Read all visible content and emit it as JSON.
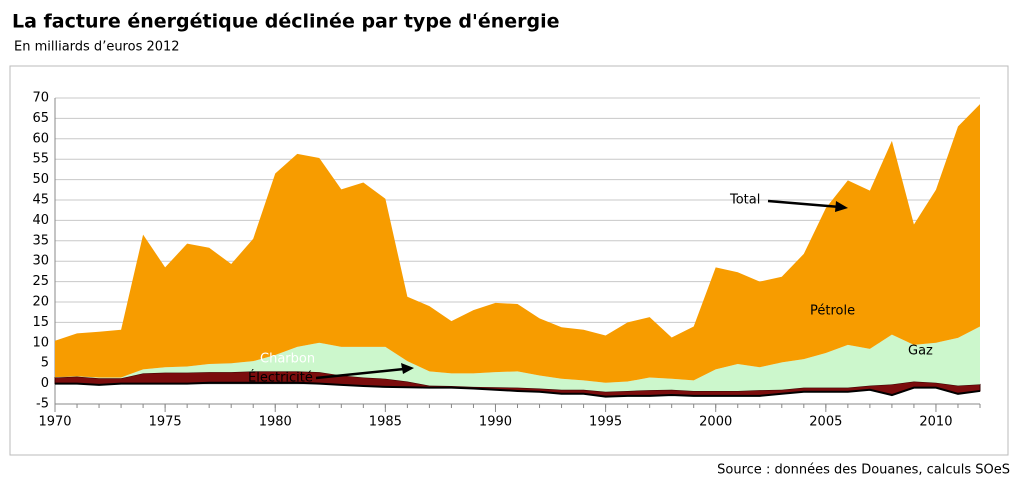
{
  "chart_data": {
    "type": "stacked-area",
    "title": "La facture énergétique déclinée par type d'énergie",
    "subtitle": "En milliards d’euros 2012",
    "source": "Source : données des Douanes, calculs SOeS",
    "annotations": [
      "Total"
    ],
    "x": [
      1970,
      1971,
      1972,
      1973,
      1974,
      1975,
      1976,
      1977,
      1978,
      1979,
      1980,
      1981,
      1982,
      1983,
      1984,
      1985,
      1986,
      1987,
      1988,
      1989,
      1990,
      1991,
      1992,
      1993,
      1994,
      1995,
      1996,
      1997,
      1998,
      1999,
      2000,
      2001,
      2002,
      2003,
      2004,
      2005,
      2006,
      2007,
      2008,
      2009,
      2010,
      2011,
      2012
    ],
    "xlim": [
      1970,
      2012
    ],
    "xticks": [
      1970,
      1975,
      1980,
      1985,
      1990,
      1995,
      2000,
      2005,
      2010
    ],
    "ylim": [
      -5,
      70
    ],
    "yticks": [
      -5,
      0,
      5,
      10,
      15,
      20,
      25,
      30,
      35,
      40,
      45,
      50,
      55,
      60,
      65,
      70
    ],
    "grid": true,
    "series": [
      {
        "name": "Électricité",
        "color": "#000000",
        "values": [
          0,
          0,
          -0.3,
          0,
          0,
          0,
          0,
          0.2,
          0.2,
          0.2,
          0.2,
          0.2,
          0,
          -0.3,
          -0.6,
          -0.8,
          -0.9,
          -1.0,
          -1.0,
          -1.2,
          -1.5,
          -1.8,
          -2.0,
          -2.5,
          -2.5,
          -3.2,
          -3.0,
          -3.0,
          -2.8,
          -3.0,
          -3.0,
          -3.0,
          -3.0,
          -2.5,
          -2.0,
          -2.0,
          -2.0,
          -1.5,
          -2.8,
          -1.0,
          -1.0,
          -2.5,
          -1.8
        ]
      },
      {
        "name": "Charbon",
        "color": "#7b0d0d",
        "values": [
          1.5,
          1.7,
          1.6,
          1.3,
          2.5,
          2.7,
          2.7,
          2.6,
          2.6,
          2.8,
          2.8,
          2.8,
          2.8,
          2.3,
          2.1,
          2.0,
          1.4,
          0.5,
          0.4,
          0.4,
          0.6,
          0.8,
          0.8,
          1.0,
          1.0,
          1.2,
          1.2,
          1.4,
          1.3,
          1.2,
          1.2,
          1.2,
          1.4,
          1.0,
          1.0,
          1.0,
          1.0,
          1.0,
          2.6,
          1.5,
          1.2,
          2.0,
          1.6
        ]
      },
      {
        "name": "Gaz",
        "color": "#ccf7cc",
        "values": [
          0.1,
          0.1,
          0.2,
          0.2,
          1.0,
          1.3,
          1.5,
          2.0,
          2.2,
          2.5,
          4.0,
          6.0,
          7.2,
          7.0,
          7.5,
          7.8,
          5.0,
          3.5,
          3.1,
          3.3,
          3.7,
          4.0,
          3.2,
          2.7,
          2.3,
          2.2,
          2.3,
          3.1,
          2.7,
          2.6,
          5.3,
          6.6,
          5.6,
          6.7,
          7.0,
          8.5,
          10.5,
          9.0,
          12.2,
          9.0,
          9.8,
          11.7,
          14.2
        ]
      },
      {
        "name": "Pétrole",
        "color": "#f79c00",
        "values": [
          8.9,
          10.5,
          11.2,
          11.7,
          33.0,
          24.5,
          30.1,
          28.5,
          24.3,
          30.0,
          44.5,
          47.3,
          45.3,
          38.6,
          40.3,
          36.3,
          15.8,
          16.0,
          12.8,
          15.5,
          17.0,
          16.5,
          14.0,
          12.6,
          12.4,
          11.6,
          14.5,
          14.8,
          10.1,
          13.2,
          25.0,
          22.5,
          21.0,
          21.0,
          25.8,
          35.5,
          40.3,
          38.8,
          47.5,
          29.5,
          37.5,
          51.8,
          54.5
        ]
      }
    ]
  }
}
